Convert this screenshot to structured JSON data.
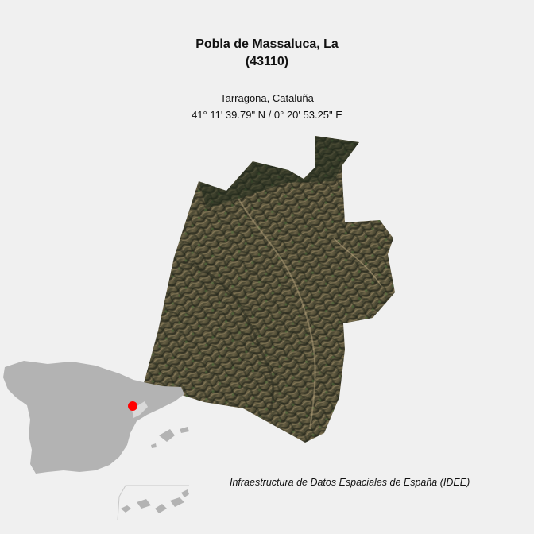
{
  "map": {
    "municipality_name": "Pobla de Massaluca, La",
    "municipality_code": "(43110)",
    "region": "Tarragona, Cataluña",
    "coordinates": "41° 11' 39.79\" N / 0° 20' 53.25\" E",
    "credit": "Infraestructura de Datos Espaciales de España (IDEE)"
  },
  "colors": {
    "background": "#f0f0f0",
    "inset_land": "#b3b3b3",
    "inset_highlight_region": "#d9d9d9",
    "location_marker": "#ff0000",
    "terrain_dark": "#2e3326",
    "terrain_light": "#8a7a5c"
  }
}
